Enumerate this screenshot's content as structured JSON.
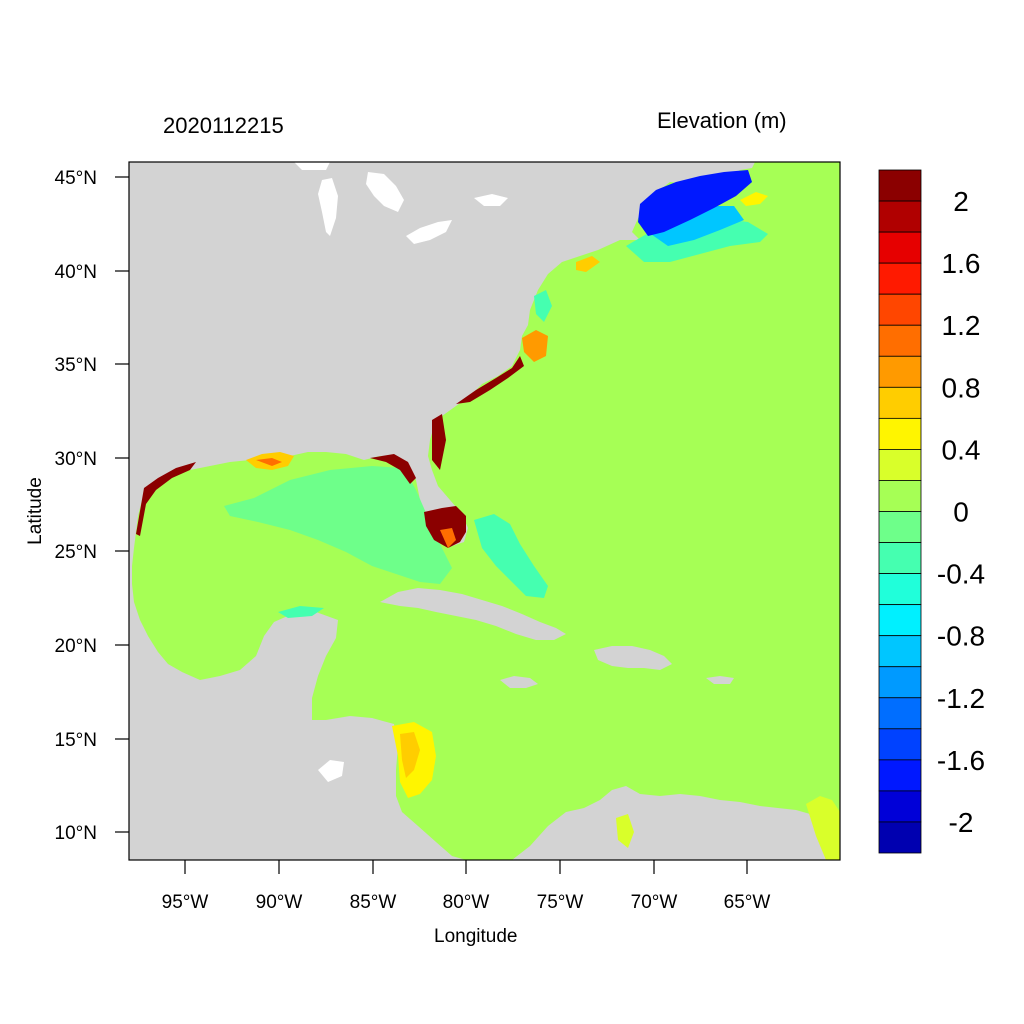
{
  "map": {
    "title_left": "2020112215",
    "title_right": "Elevation (m)",
    "xlabel": "Longitude",
    "ylabel": "Latitude",
    "lon_ticks": [
      "95°W",
      "90°W",
      "85°W",
      "80°W",
      "75°W",
      "70°W",
      "65°W"
    ],
    "lat_ticks": [
      "45°N",
      "40°N",
      "35°N",
      "30°N",
      "25°N",
      "20°N",
      "15°N",
      "10°N"
    ],
    "land_color": "#d3d3d3",
    "ocean_color": "#a6ff55"
  },
  "colorbar": {
    "labels": [
      "2",
      "1.6",
      "1.2",
      "0.8",
      "0.4",
      "0",
      "-0.4",
      "-0.8",
      "-1.2",
      "-1.6",
      "-2"
    ],
    "colors": [
      "#8b0000",
      "#b00000",
      "#e60000",
      "#ff1a00",
      "#ff4600",
      "#ff6e00",
      "#ff9a00",
      "#ffcd00",
      "#fff500",
      "#d9ff2a",
      "#a6ff55",
      "#6eff8a",
      "#45ffb0",
      "#20ffda",
      "#00f0ff",
      "#00c6ff",
      "#009aff",
      "#006eff",
      "#0042ff",
      "#0018ff",
      "#0000d8",
      "#0000b0"
    ]
  }
}
